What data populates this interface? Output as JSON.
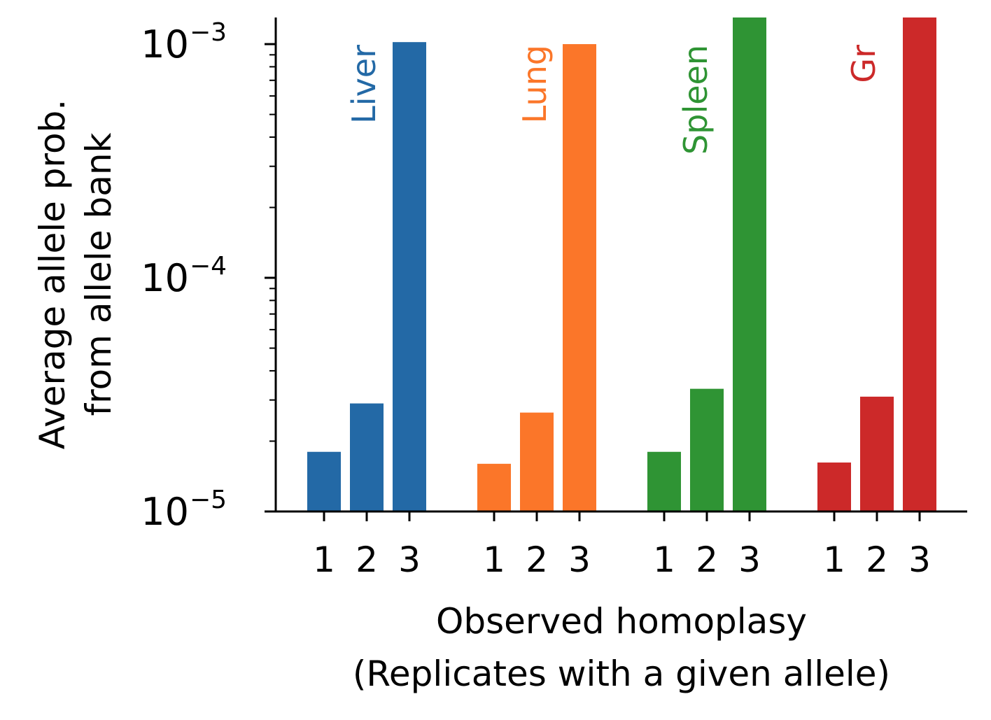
{
  "chart_data": {
    "type": "bar",
    "yscale": "log",
    "ylim": [
      1e-05,
      0.0013
    ],
    "ylabel_lines": [
      "Average allele prob.",
      "from allele bank"
    ],
    "xlabel_lines": [
      "Observed homoplasy",
      "(Replicates with a given allele)"
    ],
    "y_ticks": [
      {
        "value": 1e-05,
        "base": "10",
        "exp": "−5"
      },
      {
        "value": 0.0001,
        "base": "10",
        "exp": "−4"
      },
      {
        "value": 0.001,
        "base": "10",
        "exp": "−3"
      }
    ],
    "categories": [
      "1",
      "2",
      "3"
    ],
    "series": [
      {
        "name": "Liver",
        "color": "#2369a6",
        "values": [
          1.8e-05,
          2.9e-05,
          0.00102
        ]
      },
      {
        "name": "Lung",
        "color": "#fb7629",
        "values": [
          1.6e-05,
          2.65e-05,
          0.001
        ]
      },
      {
        "name": "Spleen",
        "color": "#2f9434",
        "values": [
          1.8e-05,
          3.35e-05,
          0.0013
        ]
      },
      {
        "name": "Gr",
        "color": "#cc2929",
        "values": [
          1.62e-05,
          3.1e-05,
          0.0013
        ]
      }
    ],
    "grid": false,
    "legend": "none"
  }
}
